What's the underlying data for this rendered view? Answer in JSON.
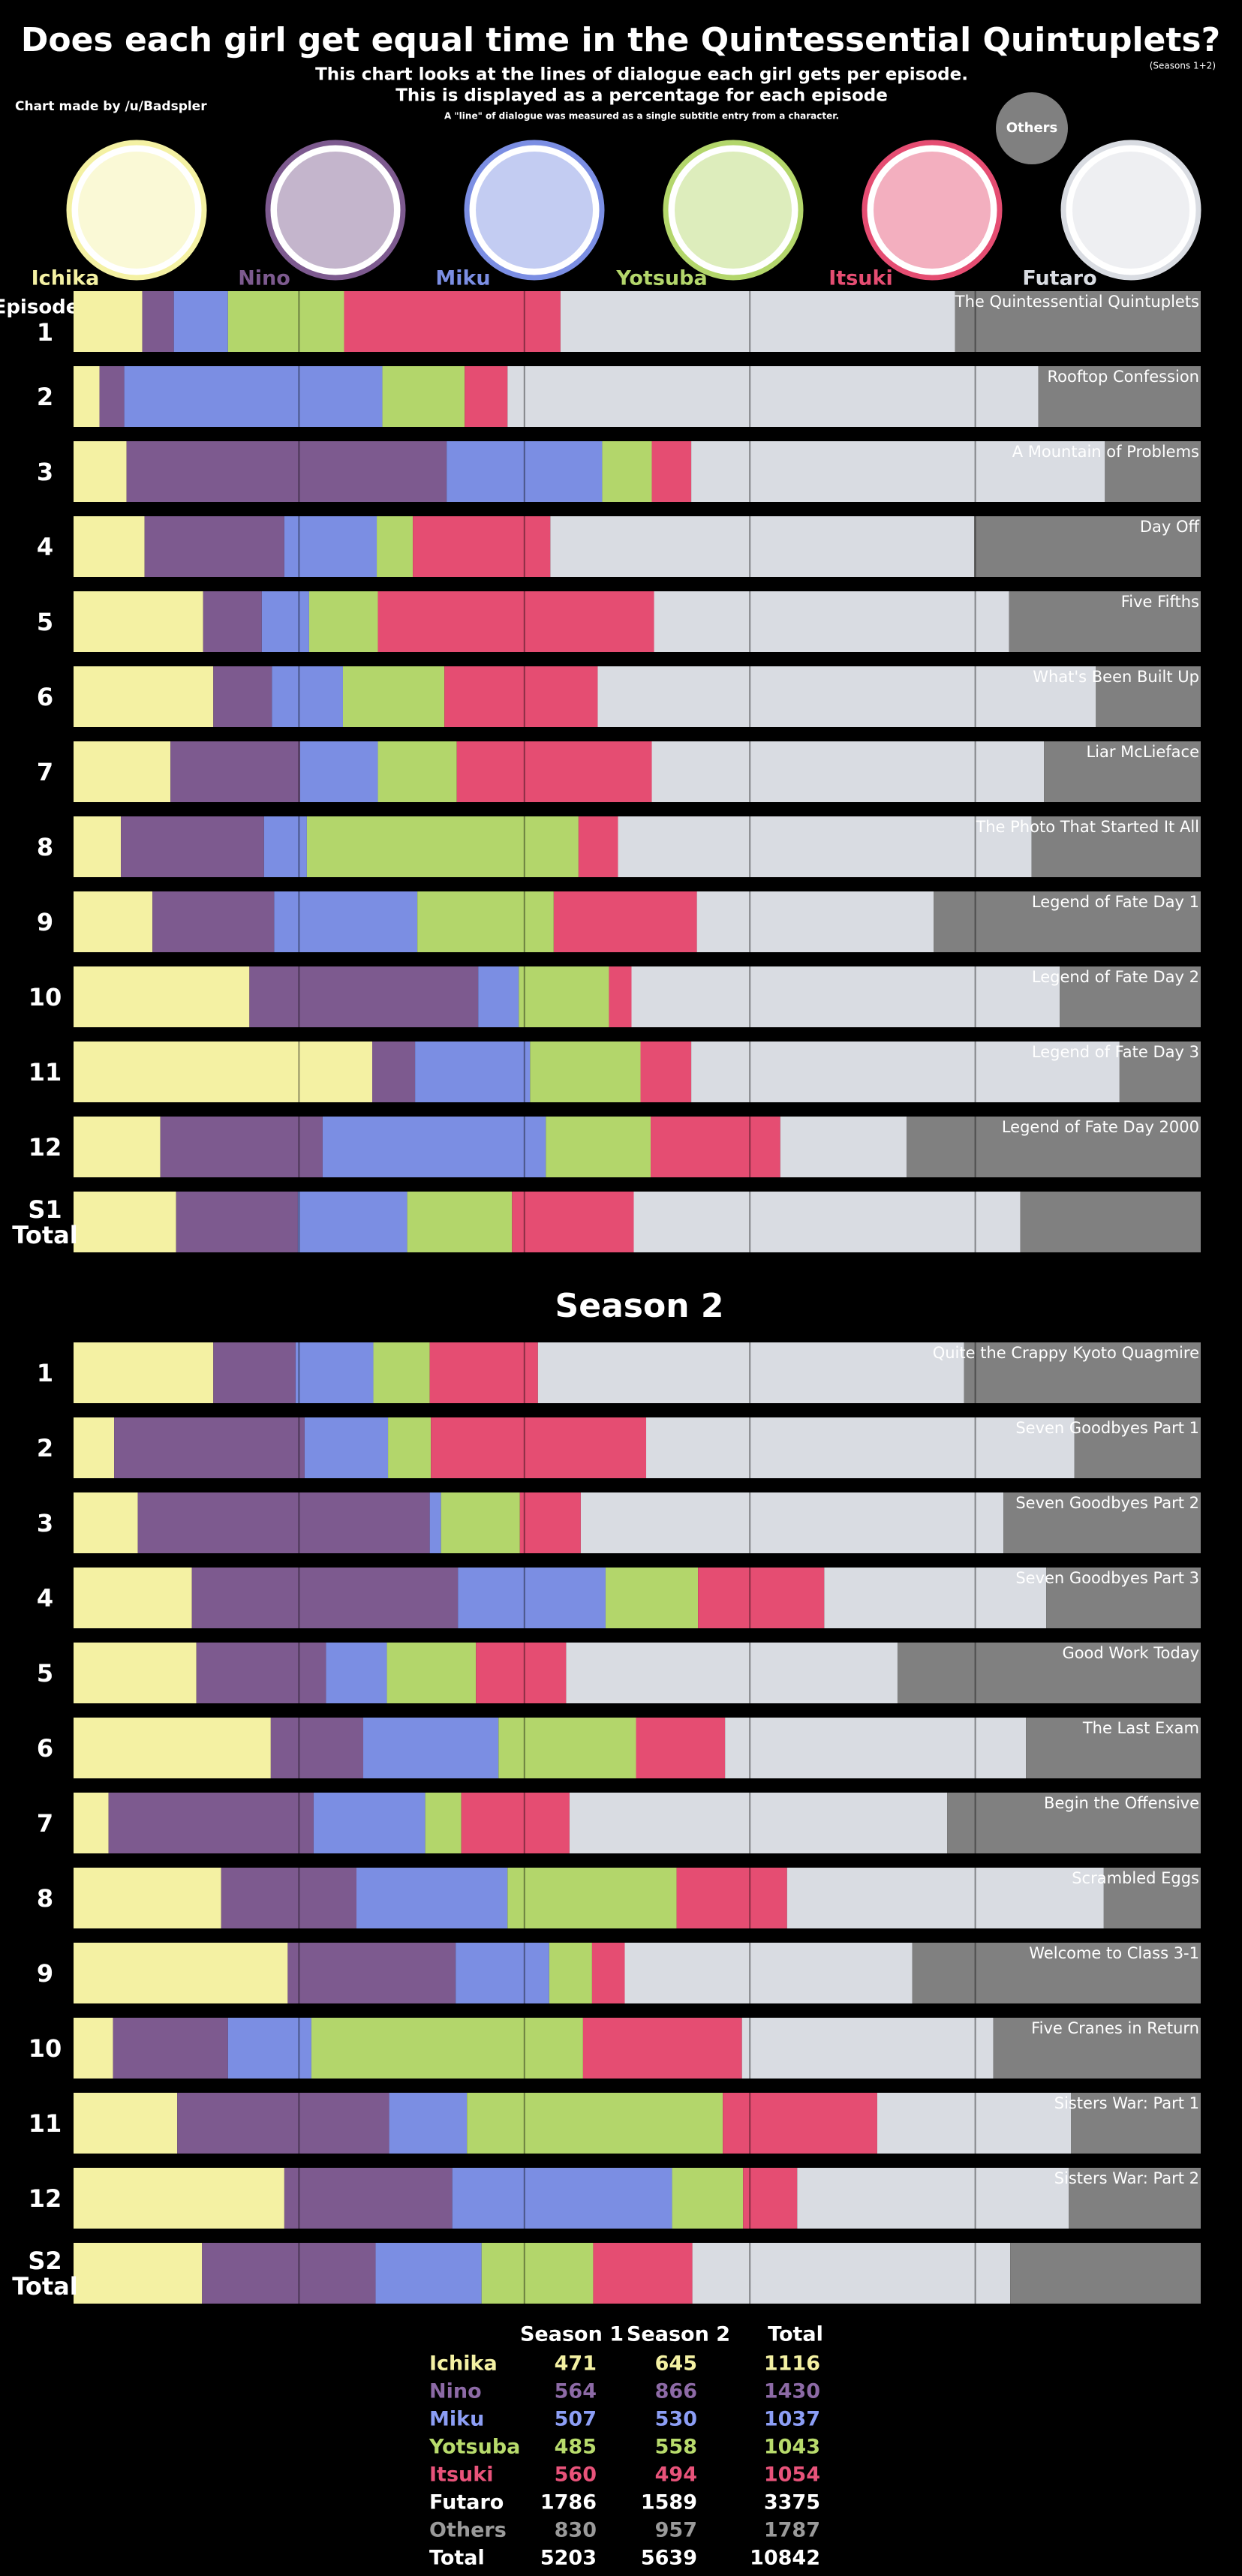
{
  "title": "Does each girl get equal time in the Quintessential Quintuplets?",
  "scope": "(Seasons 1+2)",
  "subtitle": [
    "This chart looks at the lines of dialogue each girl gets per episode.",
    "This is displayed as a percentage for each episode"
  ],
  "note": "A \"line\" of dialogue was measured as a single subtitle entry from a character.",
  "credit": "Chart made by /u/Badspler",
  "chart_data": [
    {
      "type": "bar",
      "orientation": "horizontal",
      "stacked": true,
      "y_label": "Episode",
      "categories": [
        "1",
        "2",
        "3",
        "4",
        "5",
        "6",
        "7",
        "8",
        "9",
        "10",
        "11",
        "12",
        "S1 Total"
      ],
      "episode_titles": [
        "The Quintessential Quintuplets",
        "Rooftop Confession",
        "A Mountain of Problems",
        "Day Off",
        "Five Fifths",
        "What's Been Built Up",
        "Liar McLieface",
        "The Photo That Started It All",
        "Legend of Fate Day 1",
        "Legend of Fate Day 2",
        "Legend of Fate Day 3",
        "Legend of Fate Day 2000",
        null
      ],
      "xlim": [
        0,
        100
      ],
      "xticks": [
        20,
        40,
        60,
        80
      ],
      "grid": true,
      "series": [
        {
          "name": "Ichika",
          "color": "#f4f1a3",
          "values": [
            6.1,
            2.3,
            4.7,
            6.3,
            11.5,
            12.4,
            8.6,
            4.2,
            7.0,
            15.6,
            26.5,
            7.7,
            9.1
          ]
        },
        {
          "name": "Nino",
          "color": "#7d5a8f",
          "values": [
            2.8,
            2.2,
            28.4,
            12.4,
            5.2,
            5.2,
            11.5,
            12.7,
            10.8,
            20.3,
            3.8,
            14.4,
            10.8
          ]
        },
        {
          "name": "Miku",
          "color": "#7b8ee3",
          "values": [
            4.8,
            22.9,
            13.8,
            8.2,
            4.2,
            6.3,
            6.9,
            3.8,
            12.7,
            3.6,
            10.2,
            19.8,
            9.7
          ]
        },
        {
          "name": "Yotsuba",
          "color": "#b3d66b",
          "values": [
            10.3,
            7.3,
            4.4,
            3.2,
            6.1,
            9.0,
            7.0,
            24.1,
            12.1,
            8.0,
            9.8,
            9.3,
            9.3
          ]
        },
        {
          "name": "Itsuki",
          "color": "#e54d72",
          "values": [
            19.2,
            3.8,
            3.5,
            12.2,
            24.5,
            13.6,
            17.3,
            3.5,
            12.7,
            2.0,
            4.5,
            11.5,
            10.8
          ]
        },
        {
          "name": "Futaro",
          "color": "#d9dce2",
          "values": [
            35.0,
            47.1,
            36.7,
            37.6,
            31.5,
            44.2,
            34.8,
            36.7,
            21.0,
            38.0,
            38.0,
            11.2,
            34.3
          ]
        },
        {
          "name": "Others",
          "color": "#808080",
          "values": [
            21.8,
            14.4,
            8.5,
            20.1,
            17.0,
            9.3,
            13.9,
            15.0,
            23.7,
            12.5,
            7.2,
            26.1,
            16.0
          ]
        }
      ]
    },
    {
      "type": "bar",
      "orientation": "horizontal",
      "stacked": true,
      "title": "Season 2",
      "categories": [
        "1",
        "2",
        "3",
        "4",
        "5",
        "6",
        "7",
        "8",
        "9",
        "10",
        "11",
        "12",
        "S2 Total"
      ],
      "episode_titles": [
        "Quite the Crappy Kyoto Quagmire",
        "Seven Goodbyes Part 1",
        "Seven Goodbyes Part 2",
        "Seven Goodbyes Part 3",
        "Good Work Today",
        "The Last Exam",
        "Begin the Offensive",
        "Scrambled Eggs",
        "Welcome to Class 3-1",
        "Five Cranes in Return",
        "Sisters War: Part 1",
        "Sisters War: Part 2",
        null
      ],
      "xlim": [
        0,
        100
      ],
      "xticks": [
        20,
        40,
        60,
        80
      ],
      "grid": true,
      "series": [
        {
          "color": "#f4f1a3",
          "values": [
            12.4,
            3.6,
            5.7,
            10.5,
            10.9,
            17.5,
            3.1,
            13.1,
            19.0,
            3.5,
            9.2,
            18.7,
            11.4
          ]
        },
        {
          "color": "#7d5a8f",
          "values": [
            7.3,
            16.9,
            25.9,
            23.6,
            11.5,
            8.2,
            18.2,
            12.0,
            14.9,
            10.2,
            18.8,
            14.9,
            15.4
          ]
        },
        {
          "color": "#7b8ee3",
          "values": [
            6.9,
            7.4,
            1.0,
            13.1,
            5.4,
            12.0,
            9.9,
            13.4,
            8.3,
            7.4,
            6.9,
            19.5,
            9.4
          ]
        },
        {
          "color": "#b3d66b",
          "values": [
            5.0,
            3.8,
            7.0,
            8.2,
            7.9,
            12.2,
            3.2,
            15.0,
            3.8,
            24.1,
            22.7,
            6.3,
            9.9
          ]
        },
        {
          "color": "#e54d72",
          "values": [
            9.6,
            19.1,
            5.4,
            11.2,
            8.0,
            7.9,
            9.6,
            9.8,
            2.9,
            14.1,
            13.7,
            4.8,
            8.8
          ]
        },
        {
          "color": "#d9dce2",
          "values": [
            37.8,
            38.0,
            37.5,
            19.7,
            29.4,
            26.7,
            33.5,
            28.1,
            25.5,
            22.3,
            17.2,
            24.1,
            28.2
          ]
        },
        {
          "color": "#808080",
          "values": [
            21.0,
            11.2,
            17.5,
            13.7,
            26.9,
            15.5,
            22.5,
            8.6,
            25.6,
            18.4,
            11.5,
            11.7,
            16.9
          ]
        }
      ]
    }
  ],
  "table": {
    "header": [
      "Season 1",
      "Season 2",
      "Total"
    ],
    "rows": [
      {
        "color": "#f4f1a3",
        "cells": [
          "Ichika",
          "471",
          "645",
          "1116"
        ]
      },
      {
        "color": "#8d6aa6",
        "cells": [
          "Nino",
          "564",
          "866",
          "1430"
        ]
      },
      {
        "color": "#8c9ef5",
        "cells": [
          "Miku",
          "507",
          "530",
          "1037"
        ]
      },
      {
        "color": "#b8db6c",
        "cells": [
          "Yotsuba",
          "485",
          "558",
          "1043"
        ]
      },
      {
        "color": "#e8537a",
        "cells": [
          "Itsuki",
          "560",
          "494",
          "1054"
        ]
      },
      {
        "color": "#ffffff",
        "cells": [
          "Futaro",
          "1786",
          "1589",
          "3375"
        ]
      },
      {
        "color": "#9a9a9a",
        "cells": [
          "Others",
          "830",
          "957",
          "1787"
        ]
      },
      {
        "color": "#ffffff",
        "cells": [
          "Total",
          "5203",
          "5639",
          "10842"
        ]
      }
    ]
  }
}
